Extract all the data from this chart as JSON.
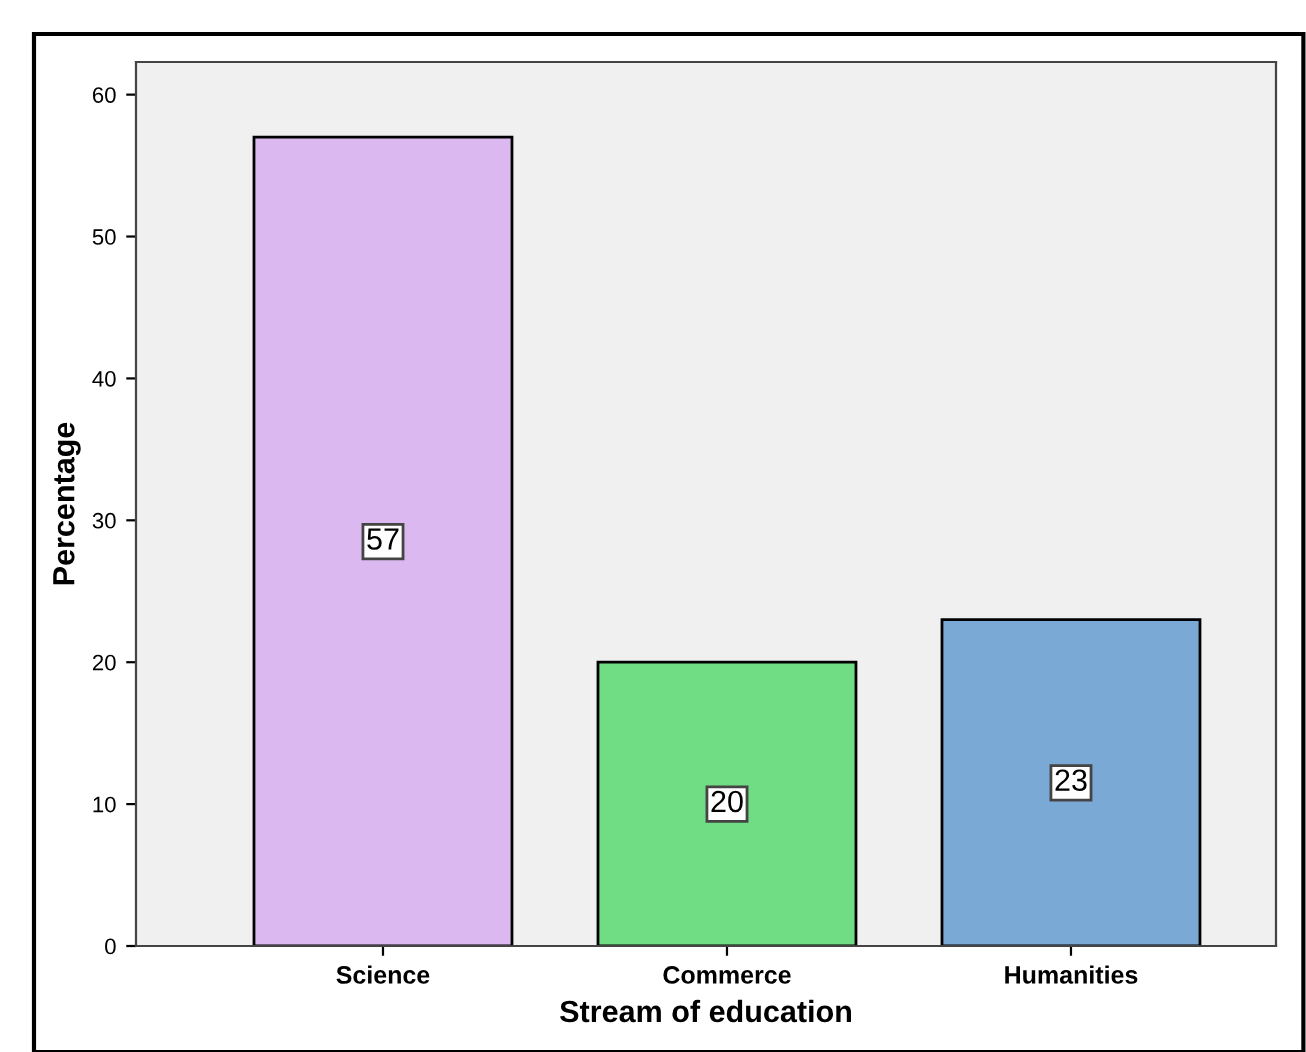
{
  "chart_data": {
    "type": "bar",
    "xlabel": "Stream of education",
    "ylabel": "Percentage",
    "categories": [
      "Science",
      "Commerce",
      "Humanities"
    ],
    "values": [
      57,
      20,
      23
    ],
    "colors": [
      "#dcb8f0",
      "#70dc84",
      "#7aa9d6"
    ],
    "ylim": [
      0,
      62.3
    ],
    "yticks": [
      0,
      10,
      20,
      30,
      40,
      50,
      60
    ],
    "grid": false,
    "data_labels": true
  }
}
